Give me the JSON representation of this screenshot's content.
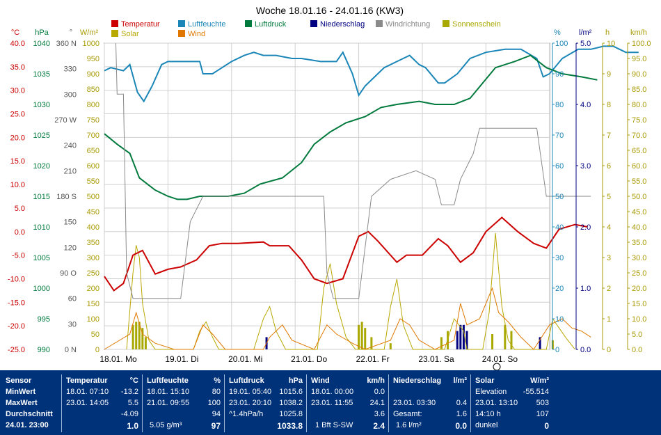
{
  "title": "Woche 18.01.16 - 24.01.16 (KW3)",
  "legend": [
    {
      "label": "Temperatur",
      "color": "#cc0000"
    },
    {
      "label": "Luftfeuchte",
      "color": "#1a86b8"
    },
    {
      "label": "Luftdruck",
      "color": "#007a3d"
    },
    {
      "label": "Niederschlag",
      "color": "#000080"
    },
    {
      "label": "Windrichtung",
      "color": "#8a8a8a"
    },
    {
      "label": "Sonnenschein",
      "color": "#a8a800"
    },
    {
      "label": "Solar",
      "color": "#b8a800"
    },
    {
      "label": "Wind",
      "color": "#e07800"
    }
  ],
  "axes": {
    "temp": {
      "unit": "°C",
      "ticks": [
        "40.0",
        "35.0",
        "30.0",
        "25.0",
        "20.0",
        "15.0",
        "10.0",
        "5.0",
        "0.0",
        "-5.0",
        "-10.0",
        "-15.0",
        "-20.0",
        "-25.0"
      ],
      "color": "#cc0000"
    },
    "press": {
      "unit": "hPa",
      "ticks": [
        "1040",
        "1035",
        "1030",
        "1025",
        "1020",
        "1015",
        "1010",
        "1005",
        "1000",
        "995",
        "990"
      ],
      "color": "#007a3d"
    },
    "dir": {
      "unit": "°",
      "ticks": [
        "360 N",
        "330",
        "300",
        "270 W",
        "240",
        "210",
        "180 S",
        "150",
        "120",
        "90 O",
        "60",
        "30",
        "0 N"
      ],
      "color": "#555555"
    },
    "solar": {
      "unit": "W/m²",
      "ticks": [
        "1000",
        "950",
        "900",
        "850",
        "800",
        "750",
        "700",
        "650",
        "600",
        "550",
        "500",
        "450",
        "400",
        "350",
        "300",
        "250",
        "200",
        "150",
        "100",
        "50",
        "0"
      ],
      "color": "#a89a00"
    },
    "hum": {
      "unit": "%",
      "ticks": [
        "100",
        "90",
        "80",
        "70",
        "60",
        "50",
        "40",
        "30",
        "20",
        "10",
        "0"
      ],
      "color": "#1a86b8"
    },
    "rain": {
      "unit": "l/m²",
      "ticks": [
        "5.0",
        "4.0",
        "3.0",
        "2.0",
        "1.0",
        "0.0"
      ],
      "color": "#000080"
    },
    "sun": {
      "unit": "h",
      "ticks": [
        "10",
        "9",
        "8",
        "7",
        "6",
        "5",
        "4",
        "3",
        "2",
        "1",
        "0"
      ],
      "color": "#a89a00"
    },
    "wind": {
      "unit": "km/h",
      "ticks": [
        "100.0",
        "95.0",
        "90.0",
        "85.0",
        "80.0",
        "75.0",
        "70.0",
        "65.0",
        "60.0",
        "55.0",
        "50.0",
        "45.0",
        "40.0",
        "35.0",
        "30.0",
        "25.0",
        "20.0",
        "15.0",
        "10.0",
        "5.0",
        "0.0"
      ],
      "color": "#a89a00"
    }
  },
  "x_labels": [
    "18.01. Mo",
    "19.01. Di",
    "20.01. Mi",
    "21.01. Do",
    "22.01. Fr",
    "23.01. Sa",
    "24.01. So"
  ],
  "chart_data": {
    "type": "line",
    "title": "Woche 18.01.16 - 24.01.16 (KW3)",
    "x_range_days": [
      0,
      7
    ],
    "series": [
      {
        "name": "Temperatur",
        "axis": "temp",
        "points": [
          [
            0,
            -9.5
          ],
          [
            0.15,
            -12.5
          ],
          [
            0.3,
            -11
          ],
          [
            0.45,
            -5
          ],
          [
            0.6,
            -4
          ],
          [
            0.8,
            -9
          ],
          [
            1,
            -8
          ],
          [
            1.2,
            -7.5
          ],
          [
            1.45,
            -6
          ],
          [
            1.65,
            -3
          ],
          [
            1.85,
            -2.5
          ],
          [
            2.1,
            -2.5
          ],
          [
            2.5,
            -2.2
          ],
          [
            2.6,
            -3
          ],
          [
            2.9,
            -3
          ],
          [
            3.1,
            -6
          ],
          [
            3.3,
            -10
          ],
          [
            3.5,
            -11
          ],
          [
            3.75,
            -10
          ],
          [
            4.0,
            -1
          ],
          [
            4.15,
            0
          ],
          [
            4.3,
            -2
          ],
          [
            4.6,
            -6.5
          ],
          [
            4.75,
            -5
          ],
          [
            5.0,
            -5
          ],
          [
            5.25,
            -1.5
          ],
          [
            5.4,
            -3
          ],
          [
            5.6,
            -6.5
          ],
          [
            5.8,
            -4.5
          ],
          [
            6.0,
            0
          ],
          [
            6.25,
            3
          ],
          [
            6.5,
            0
          ],
          [
            6.75,
            -2.5
          ],
          [
            6.95,
            -3.5
          ],
          [
            7.15,
            0.5
          ],
          [
            7.4,
            1.5
          ],
          [
            7.6,
            1
          ]
        ]
      },
      {
        "name": "Luftfeuchte",
        "axis": "hum",
        "points": [
          [
            0,
            91
          ],
          [
            0.1,
            92
          ],
          [
            0.3,
            91
          ],
          [
            0.4,
            93
          ],
          [
            0.52,
            84
          ],
          [
            0.62,
            81
          ],
          [
            0.75,
            86
          ],
          [
            0.9,
            93
          ],
          [
            1.0,
            94
          ],
          [
            1.2,
            94
          ],
          [
            1.5,
            94
          ],
          [
            1.55,
            90
          ],
          [
            1.7,
            90
          ],
          [
            1.85,
            92
          ],
          [
            2.0,
            94
          ],
          [
            2.2,
            96
          ],
          [
            2.35,
            97
          ],
          [
            2.5,
            96
          ],
          [
            2.7,
            96
          ],
          [
            2.95,
            95
          ],
          [
            3.1,
            95
          ],
          [
            3.4,
            94
          ],
          [
            3.65,
            94
          ],
          [
            3.75,
            97
          ],
          [
            3.9,
            90
          ],
          [
            4.0,
            83
          ],
          [
            4.1,
            86
          ],
          [
            4.3,
            90
          ],
          [
            4.4,
            92
          ],
          [
            4.6,
            94
          ],
          [
            4.8,
            96
          ],
          [
            4.95,
            93
          ],
          [
            5.05,
            92
          ],
          [
            5.25,
            87
          ],
          [
            5.35,
            87
          ],
          [
            5.55,
            90
          ],
          [
            5.75,
            95
          ],
          [
            6.0,
            97
          ],
          [
            6.3,
            98
          ],
          [
            6.55,
            98
          ],
          [
            6.8,
            95
          ],
          [
            6.9,
            89
          ],
          [
            7.0,
            90
          ],
          [
            7.2,
            95
          ],
          [
            7.45,
            98
          ],
          [
            7.65,
            98
          ],
          [
            7.85,
            99
          ],
          [
            8.0,
            99
          ],
          [
            8.2,
            97
          ],
          [
            8.4,
            97
          ]
        ]
      },
      {
        "name": "Luftdruck",
        "axis": "press",
        "points": [
          [
            0,
            1025.2
          ],
          [
            0.2,
            1023.5
          ],
          [
            0.4,
            1022
          ],
          [
            0.55,
            1018
          ],
          [
            0.8,
            1016
          ],
          [
            1.0,
            1015
          ],
          [
            1.15,
            1014.5
          ],
          [
            1.3,
            1014.5
          ],
          [
            1.5,
            1015
          ],
          [
            1.7,
            1015
          ],
          [
            1.95,
            1015
          ],
          [
            2.2,
            1015.5
          ],
          [
            2.45,
            1017
          ],
          [
            2.8,
            1018
          ],
          [
            3.1,
            1020.5
          ],
          [
            3.3,
            1023.5
          ],
          [
            3.55,
            1025.5
          ],
          [
            3.8,
            1027
          ],
          [
            4.1,
            1028
          ],
          [
            4.35,
            1029.5
          ],
          [
            4.6,
            1030
          ],
          [
            4.95,
            1030.5
          ],
          [
            5.2,
            1030
          ],
          [
            5.5,
            1030
          ],
          [
            5.75,
            1031
          ],
          [
            5.95,
            1033.5
          ],
          [
            6.15,
            1036
          ],
          [
            6.45,
            1037
          ],
          [
            6.7,
            1038
          ],
          [
            6.95,
            1036
          ],
          [
            7.2,
            1035
          ],
          [
            7.5,
            1034.5
          ],
          [
            7.75,
            1034
          ]
        ]
      },
      {
        "name": "Windrichtung",
        "axis": "dir",
        "points": [
          [
            0.18,
            360
          ],
          [
            0.2,
            300
          ],
          [
            0.3,
            300
          ],
          [
            0.35,
            90
          ],
          [
            0.45,
            60
          ],
          [
            0.6,
            60
          ],
          [
            0.75,
            60
          ],
          [
            1.0,
            60
          ],
          [
            1.2,
            60
          ],
          [
            1.35,
            150
          ],
          [
            1.55,
            180
          ],
          [
            1.8,
            180
          ],
          [
            2.0,
            180
          ],
          [
            2.3,
            180
          ],
          [
            3.3,
            180
          ],
          [
            3.45,
            180
          ],
          [
            3.5,
            90
          ],
          [
            3.6,
            60
          ],
          [
            4.0,
            60
          ],
          [
            4.2,
            180
          ],
          [
            4.5,
            200
          ],
          [
            4.9,
            210
          ],
          [
            5.2,
            200
          ],
          [
            5.3,
            170
          ],
          [
            5.5,
            170
          ],
          [
            5.6,
            200
          ],
          [
            5.8,
            230
          ],
          [
            5.9,
            260
          ],
          [
            6.2,
            260
          ],
          [
            6.5,
            260
          ],
          [
            6.8,
            260
          ],
          [
            6.95,
            180
          ],
          [
            7.1,
            180
          ],
          [
            7.4,
            180
          ],
          [
            7.65,
            180
          ]
        ]
      }
    ],
    "bars": [
      {
        "name": "Niederschlag",
        "axis": "rain",
        "color": "#000080",
        "points": [
          [
            2.55,
            0.2
          ],
          [
            5.55,
            0.3
          ],
          [
            5.6,
            0.4
          ],
          [
            5.65,
            0.4
          ],
          [
            5.7,
            0.3
          ],
          [
            6.85,
            0.2
          ]
        ]
      },
      {
        "name": "Sonnenschein",
        "axis": "sun",
        "color": "#a8a800",
        "points": [
          [
            0.45,
            0.8
          ],
          [
            0.5,
            0.9
          ],
          [
            0.55,
            0.9
          ],
          [
            0.6,
            0.7
          ],
          [
            0.65,
            0.4
          ],
          [
            4.0,
            0.8
          ],
          [
            4.05,
            0.9
          ],
          [
            4.1,
            0.7
          ],
          [
            4.2,
            0.4
          ],
          [
            4.5,
            0.2
          ],
          [
            5.3,
            0.4
          ],
          [
            5.4,
            0.6
          ],
          [
            6.1,
            0.5
          ],
          [
            6.3,
            0.8
          ],
          [
            6.4,
            0.6
          ],
          [
            7.05,
            0.3
          ]
        ]
      }
    ],
    "solar": {
      "name": "Solar",
      "axis": "solar",
      "points": [
        [
          0.35,
          0
        ],
        [
          0.45,
          250
        ],
        [
          0.5,
          340
        ],
        [
          0.55,
          300
        ],
        [
          0.6,
          150
        ],
        [
          0.7,
          30
        ],
        [
          0.8,
          0
        ],
        [
          1.4,
          0
        ],
        [
          1.5,
          60
        ],
        [
          1.6,
          90
        ],
        [
          1.7,
          40
        ],
        [
          1.8,
          0
        ],
        [
          2.35,
          0
        ],
        [
          2.5,
          100
        ],
        [
          2.6,
          140
        ],
        [
          2.7,
          60
        ],
        [
          2.85,
          0
        ],
        [
          3.35,
          0
        ],
        [
          3.45,
          200
        ],
        [
          3.55,
          280
        ],
        [
          3.65,
          150
        ],
        [
          3.8,
          40
        ],
        [
          3.95,
          0
        ],
        [
          4.4,
          0
        ],
        [
          4.5,
          140
        ],
        [
          4.6,
          230
        ],
        [
          4.7,
          80
        ],
        [
          4.85,
          0
        ],
        [
          5.35,
          0
        ],
        [
          5.5,
          100
        ],
        [
          5.65,
          60
        ],
        [
          5.7,
          0
        ],
        [
          5.95,
          0
        ],
        [
          6.05,
          120
        ],
        [
          6.15,
          380
        ],
        [
          6.25,
          140
        ],
        [
          6.35,
          30
        ],
        [
          6.45,
          0
        ],
        [
          6.95,
          0
        ],
        [
          7.05,
          100
        ],
        [
          7.15,
          70
        ],
        [
          7.25,
          40
        ],
        [
          7.4,
          0
        ]
      ]
    },
    "wind": {
      "name": "Wind",
      "axis": "wind",
      "points": [
        [
          0,
          0
        ],
        [
          0.4,
          5
        ],
        [
          0.5,
          12
        ],
        [
          0.6,
          5
        ],
        [
          0.8,
          2
        ],
        [
          1.1,
          0
        ],
        [
          1.4,
          0
        ],
        [
          1.55,
          8
        ],
        [
          1.7,
          5
        ],
        [
          1.9,
          0
        ],
        [
          2.5,
          0
        ],
        [
          2.6,
          4
        ],
        [
          2.8,
          8
        ],
        [
          2.95,
          3
        ],
        [
          3.3,
          0
        ],
        [
          3.5,
          8
        ],
        [
          3.65,
          5
        ],
        [
          3.9,
          2
        ],
        [
          4.1,
          0
        ],
        [
          4.5,
          3
        ],
        [
          4.65,
          10
        ],
        [
          4.8,
          8
        ],
        [
          4.95,
          3
        ],
        [
          5.2,
          0
        ],
        [
          5.5,
          3
        ],
        [
          5.6,
          15
        ],
        [
          5.7,
          8
        ],
        [
          5.9,
          10
        ],
        [
          6.1,
          20
        ],
        [
          6.2,
          12
        ],
        [
          6.35,
          9
        ],
        [
          6.55,
          4
        ],
        [
          6.75,
          0
        ],
        [
          7.0,
          8
        ],
        [
          7.2,
          10
        ],
        [
          7.35,
          7
        ],
        [
          7.5,
          6
        ],
        [
          7.65,
          4
        ]
      ]
    }
  },
  "table": {
    "rows_label": [
      "Sensor",
      "MinWert",
      "MaxWert",
      "Durchschnitt",
      "24.01. 23:00"
    ],
    "temperatur": {
      "h1": "Temperatur",
      "h2": "°C",
      "min_t": "18.01. 07:10",
      "min_v": "-13.2",
      "max_t": "23.01. 14:05",
      "max_v": "5.5",
      "avg": "-4.09",
      "cur": "1.0"
    },
    "luftfeuchte": {
      "h1": "Luftfeuchte",
      "h2": "%",
      "min_t": "18.01. 15:10",
      "min_v": "80",
      "max_t": "21.01. 09:55",
      "max_v": "100",
      "avg": "94",
      "abs": "5.05 g/m³",
      "cur": "97"
    },
    "luftdruck": {
      "h1": "Luftdruck",
      "h2": "hPa",
      "min_t": "19.01. 05:40",
      "min_v": "1015.6",
      "max_t": "23.01. 20:10",
      "max_v": "1038.2",
      "trend": "^1.4hPa/h",
      "avg": "1025.8",
      "cur": "1033.8"
    },
    "wind": {
      "h1": "Wind",
      "h2": "km/h",
      "min_t": "18.01. 00:00",
      "min_v": "0.0",
      "max_t": "23.01. 11:55",
      "max_v": "24.1",
      "avg": "3.6",
      "cur_t": "1 Bft S-SW",
      "cur": "2.4"
    },
    "niederschlag": {
      "h1": "Niederschlag",
      "h2": "l/m²",
      "max_t": "23.01. 03:30",
      "max_v": "0.4",
      "ges_l": "Gesamt:",
      "ges_v": "1.6",
      "avg": "1.6 l/m²",
      "cur": "0.0"
    },
    "solar": {
      "h1": "Solar",
      "h2": "W/m²",
      "elev_l": "Elevation",
      "elev_v": "-55.514",
      "max_t": "23.01. 13:10",
      "max_v": "503",
      "sun_t": "14:10 h",
      "sun_v": "107",
      "cur_t": "dunkel",
      "cur": "0"
    }
  }
}
